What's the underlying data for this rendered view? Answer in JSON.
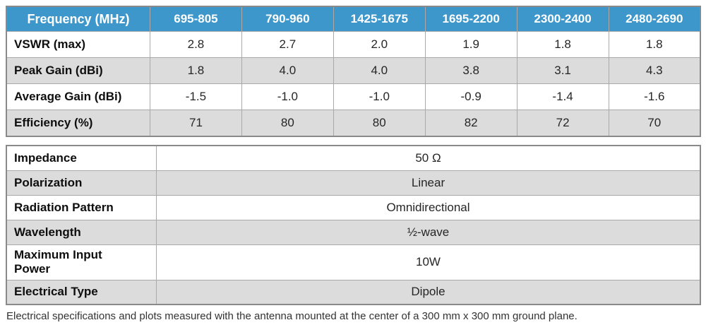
{
  "electrical_table": {
    "header": {
      "label": "Frequency (MHz)",
      "columns": [
        "695-805",
        "790-960",
        "1425-1675",
        "1695-2200",
        "2300-2400",
        "2480-2690"
      ]
    },
    "rows": [
      {
        "label": "VSWR (max)",
        "values": [
          "2.8",
          "2.7",
          "2.0",
          "1.9",
          "1.8",
          "1.8"
        ]
      },
      {
        "label": "Peak Gain (dBi)",
        "values": [
          "1.8",
          "4.0",
          "4.0",
          "3.8",
          "3.1",
          "4.3"
        ]
      },
      {
        "label": "Average Gain (dBi)",
        "values": [
          "-1.5",
          "-1.0",
          "-1.0",
          "-0.9",
          "-1.4",
          "-1.6"
        ]
      },
      {
        "label": "Efficiency (%)",
        "values": [
          "71",
          "80",
          "80",
          "82",
          "72",
          "70"
        ]
      }
    ]
  },
  "properties_table": {
    "rows": [
      {
        "label": "Impedance",
        "value": "50 Ω"
      },
      {
        "label": "Polarization",
        "value": "Linear"
      },
      {
        "label": "Radiation Pattern",
        "value": "Omnidirectional"
      },
      {
        "label": "Wavelength",
        "value": "½-wave"
      },
      {
        "label": "Maximum Input Power",
        "value": "10W"
      },
      {
        "label": "Electrical Type",
        "value": "Dipole"
      }
    ]
  },
  "footnote": "Electrical specifications and plots measured with the antenna mounted at the center of a 300 mm x 300 mm ground plane.",
  "colors": {
    "header_blue": "#3d97cb",
    "row_alt_gray": "#dcdcdc",
    "border_outer": "#8a8a8a",
    "border_inner": "#a9a9a9"
  }
}
